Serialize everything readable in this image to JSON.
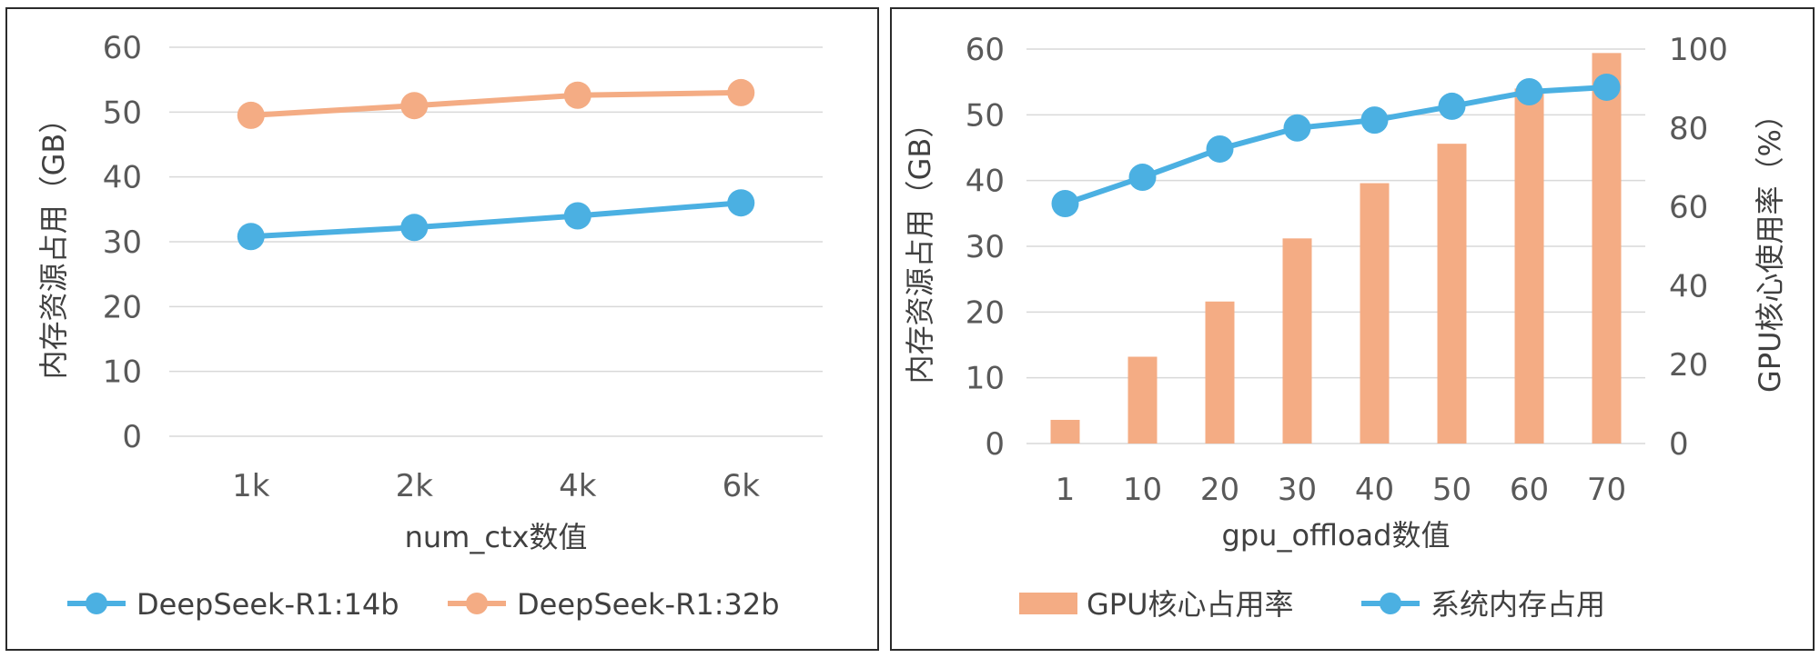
{
  "chart_data": [
    {
      "type": "line",
      "title": "",
      "categories": [
        "1k",
        "2k",
        "4k",
        "6k"
      ],
      "xlabel": "num_ctx数值",
      "ylabel": "内存资源占用（GB）",
      "ylim": [
        0,
        60
      ],
      "yticks": [
        "0",
        "10",
        "20",
        "30",
        "40",
        "50",
        "60"
      ],
      "grid": true,
      "legend_position": "bottom",
      "series": [
        {
          "name": "DeepSeek-R1:14b",
          "color": "#4BB0E2",
          "values": [
            30.8,
            32.2,
            34.0,
            36.0
          ]
        },
        {
          "name": "DeepSeek-R1:32b",
          "color": "#F4AC84",
          "values": [
            49.5,
            51.0,
            52.6,
            53.0
          ]
        }
      ]
    },
    {
      "type": "bar+line",
      "title": "",
      "categories": [
        "1",
        "10",
        "20",
        "30",
        "40",
        "50",
        "60",
        "70"
      ],
      "xlabel": "gpu_offload数值",
      "ylabel": "内存资源占用（GB）",
      "y2label": "GPU核心使用率（%）",
      "ylim": [
        0,
        60
      ],
      "y2lim": [
        0,
        100
      ],
      "yticks": [
        "0",
        "10",
        "20",
        "30",
        "40",
        "50",
        "60"
      ],
      "y2ticks": [
        "0",
        "20",
        "40",
        "60",
        "80",
        "100"
      ],
      "grid": true,
      "legend_position": "bottom",
      "series": [
        {
          "name": "GPU核心占用率",
          "type": "bar",
          "axis": "y2",
          "color": "#F4AC84",
          "values": [
            6,
            22,
            36,
            52,
            66,
            76,
            90,
            99
          ]
        },
        {
          "name": "系统内存占用",
          "type": "line",
          "axis": "y",
          "color": "#4BB0E2",
          "values": [
            36.5,
            40.5,
            44.8,
            48.0,
            49.2,
            51.3,
            53.5,
            54.2
          ]
        }
      ]
    }
  ]
}
